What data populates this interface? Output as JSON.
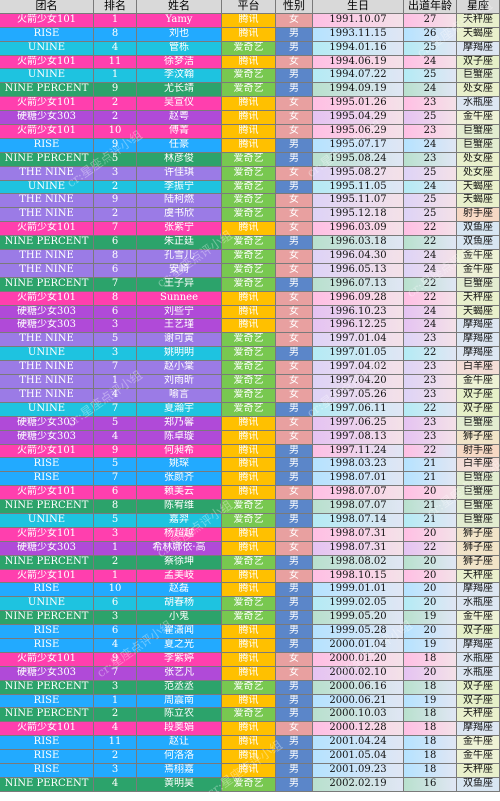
{
  "headers": [
    "团名",
    "排名",
    "姓名",
    "平台",
    "性别",
    "生日",
    "出道年龄",
    "星座"
  ],
  "colors": {
    "team": {
      "火箭少女101": "#ff3fae",
      "RISE": "#22aaff",
      "UNINE": "#1ec3e0",
      "NINE PERCENT": "#2ca36b",
      "硬糖少女303": "#b04ad8",
      "THE NINE": "#9b7be6"
    },
    "platform": {
      "腾讯": "#ffc000",
      "爱奇艺": "#78c850"
    },
    "gender": {
      "女": "#e8a0a0",
      "男": "#5b86c9"
    },
    "zodiac": {
      "天秤座": "#e9f0cc",
      "天蝎座": "#e9f0cc",
      "摩羯座": "#dde6f2",
      "双子座": "#e6f0c8",
      "巨蟹座": "#e2ecd0",
      "处女座": "#e9f0cc",
      "水瓶座": "#dde6f2",
      "金牛座": "#eef2d6",
      "狮子座": "#f1e4c8",
      "射手座": "#f6d8c4",
      "双鱼座": "#d8e6f2",
      "白羊座": "#f3ddd6"
    }
  },
  "watermark": "cr:星座点评小组",
  "rows": [
    [
      "火箭少女101",
      "1",
      "Yamy",
      "腾讯",
      "女",
      "1991.10.07",
      "27",
      "天秤座"
    ],
    [
      "RISE",
      "8",
      "刘也",
      "腾讯",
      "男",
      "1993.11.15",
      "26",
      "天蝎座"
    ],
    [
      "UNINE",
      "4",
      "管栎",
      "爱奇艺",
      "男",
      "1994.01.16",
      "25",
      "摩羯座"
    ],
    [
      "火箭少女101",
      "11",
      "徐梦洁",
      "腾讯",
      "女",
      "1994.06.19",
      "24",
      "双子座"
    ],
    [
      "UNINE",
      "1",
      "李汶翰",
      "爱奇艺",
      "男",
      "1994.07.22",
      "25",
      "巨蟹座"
    ],
    [
      "NINE PERCENT",
      "9",
      "尤长靖",
      "爱奇艺",
      "男",
      "1994.09.19",
      "24",
      "处女座"
    ],
    [
      "火箭少女101",
      "2",
      "吴宣仪",
      "腾讯",
      "女",
      "1995.01.26",
      "23",
      "水瓶座"
    ],
    [
      "硬糖少女303",
      "2",
      "赵粤",
      "腾讯",
      "女",
      "1995.04.29",
      "25",
      "金牛座"
    ],
    [
      "火箭少女101",
      "10",
      "傅菁",
      "腾讯",
      "女",
      "1995.06.29",
      "23",
      "巨蟹座"
    ],
    [
      "RISE",
      "9",
      "任豪",
      "腾讯",
      "男",
      "1995.07.17",
      "24",
      "巨蟹座"
    ],
    [
      "NINE PERCENT",
      "5",
      "林彦俊",
      "爱奇艺",
      "男",
      "1995.08.24",
      "23",
      "处女座"
    ],
    [
      "THE NINE",
      "3",
      "许佳琪",
      "爱奇艺",
      "女",
      "1995.08.27",
      "25",
      "处女座"
    ],
    [
      "UNINE",
      "2",
      "李振宁",
      "爱奇艺",
      "男",
      "1995.11.05",
      "24",
      "天蝎座"
    ],
    [
      "THE NINE",
      "9",
      "陆柯燃",
      "爱奇艺",
      "女",
      "1995.11.07",
      "25",
      "天蝎座"
    ],
    [
      "THE NINE",
      "2",
      "虞书欣",
      "爱奇艺",
      "女",
      "1995.12.18",
      "25",
      "射手座"
    ],
    [
      "火箭少女101",
      "7",
      "张紫宁",
      "腾讯",
      "女",
      "1996.03.09",
      "22",
      "双鱼座"
    ],
    [
      "NINE PERCENT",
      "6",
      "朱正廷",
      "爱奇艺",
      "男",
      "1996.03.18",
      "22",
      "双鱼座"
    ],
    [
      "THE NINE",
      "8",
      "孔雪儿",
      "爱奇艺",
      "女",
      "1996.04.30",
      "24",
      "金牛座"
    ],
    [
      "THE NINE",
      "6",
      "安崎",
      "爱奇艺",
      "女",
      "1996.05.13",
      "24",
      "金牛座"
    ],
    [
      "NINE PERCENT",
      "7",
      "王子异",
      "爱奇艺",
      "男",
      "1996.07.13",
      "22",
      "巨蟹座"
    ],
    [
      "火箭少女101",
      "8",
      "Sunnee",
      "腾讯",
      "女",
      "1996.09.28",
      "22",
      "天秤座"
    ],
    [
      "硬糖少女303",
      "6",
      "刘些宁",
      "腾讯",
      "女",
      "1996.10.23",
      "24",
      "天蝎座"
    ],
    [
      "硬糖少女303",
      "3",
      "王艺瑾",
      "腾讯",
      "女",
      "1996.12.25",
      "24",
      "摩羯座"
    ],
    [
      "THE NINE",
      "5",
      "谢可寅",
      "爱奇艺",
      "女",
      "1997.01.04",
      "23",
      "摩羯座"
    ],
    [
      "UNINE",
      "3",
      "姚明明",
      "爱奇艺",
      "男",
      "1997.01.05",
      "22",
      "摩羯座"
    ],
    [
      "THE NINE",
      "7",
      "赵小棠",
      "爱奇艺",
      "女",
      "1997.04.02",
      "23",
      "白羊座"
    ],
    [
      "THE NINE",
      "1",
      "刘雨昕",
      "爱奇艺",
      "女",
      "1997.04.20",
      "23",
      "金牛座"
    ],
    [
      "THE NINE",
      "4",
      "喻言",
      "爱奇艺",
      "女",
      "1997.05.26",
      "23",
      "双子座"
    ],
    [
      "UNINE",
      "7",
      "夏瀚宇",
      "爱奇艺",
      "男",
      "1997.06.11",
      "22",
      "双子座"
    ],
    [
      "硬糖少女303",
      "5",
      "郑乃馨",
      "腾讯",
      "女",
      "1997.06.25",
      "23",
      "巨蟹座"
    ],
    [
      "硬糖少女303",
      "4",
      "陈卓璇",
      "腾讯",
      "女",
      "1997.08.13",
      "23",
      "狮子座"
    ],
    [
      "火箭少女101",
      "9",
      "何昶希",
      "腾讯",
      "男",
      "1997.11.24",
      "22",
      "射手座"
    ],
    [
      "RISE",
      "5",
      "姚琛",
      "腾讯",
      "男",
      "1998.03.23",
      "21",
      "白羊座"
    ],
    [
      "RISE",
      "7",
      "张颜齐",
      "腾讯",
      "男",
      "1998.07.01",
      "21",
      "巨蟹座"
    ],
    [
      "火箭少女101",
      "6",
      "赖美云",
      "腾讯",
      "女",
      "1998.07.07",
      "20",
      "巨蟹座"
    ],
    [
      "NINE PERCENT",
      "8",
      "陈宥维",
      "爱奇艺",
      "男",
      "1998.07.07",
      "21",
      "巨蟹座"
    ],
    [
      "UNINE",
      "5",
      "嘉羿",
      "爱奇艺",
      "男",
      "1998.07.14",
      "21",
      "巨蟹座"
    ],
    [
      "火箭少女101",
      "3",
      "杨超越",
      "腾讯",
      "女",
      "1998.07.31",
      "20",
      "狮子座"
    ],
    [
      "硬糖少女303",
      "1",
      "希林娜依·高",
      "腾讯",
      "女",
      "1998.07.31",
      "22",
      "狮子座"
    ],
    [
      "NINE PERCENT",
      "2",
      "蔡徐坤",
      "爱奇艺",
      "男",
      "1998.08.02",
      "20",
      "狮子座"
    ],
    [
      "火箭少女101",
      "1",
      "孟美岐",
      "腾讯",
      "女",
      "1998.10.15",
      "20",
      "天秤座"
    ],
    [
      "RISE",
      "10",
      "赵磊",
      "腾讯",
      "男",
      "1999.01.01",
      "20",
      "摩羯座"
    ],
    [
      "UNINE",
      "6",
      "胡春杨",
      "爱奇艺",
      "男",
      "1999.02.05",
      "20",
      "水瓶座"
    ],
    [
      "NINE PERCENT",
      "3",
      "小鬼",
      "爱奇艺",
      "男",
      "1999.05.20",
      "19",
      "金牛座"
    ],
    [
      "RISE",
      "6",
      "翟潇闻",
      "腾讯",
      "男",
      "1999.05.28",
      "20",
      "双子座"
    ],
    [
      "RISE",
      "4",
      "夏之光",
      "腾讯",
      "男",
      "2000.01.04",
      "19",
      "摩羯座"
    ],
    [
      "火箭少女101",
      "9",
      "李紫婷",
      "腾讯",
      "女",
      "2000.01.20",
      "18",
      "水瓶座"
    ],
    [
      "硬糖少女303",
      "7",
      "张艺凡",
      "腾讯",
      "女",
      "2000.02.10",
      "20",
      "水瓶座"
    ],
    [
      "NINE PERCENT",
      "3",
      "范丞丞",
      "爱奇艺",
      "男",
      "2000.06.16",
      "18",
      "双子座"
    ],
    [
      "RISE",
      "1",
      "周震南",
      "腾讯",
      "男",
      "2000.06.21",
      "19",
      "双子座"
    ],
    [
      "NINE PERCENT",
      "2",
      "陈立农",
      "爱奇艺",
      "男",
      "2000.10.03",
      "18",
      "天秤座"
    ],
    [
      "火箭少女101",
      "4",
      "段奥娟",
      "腾讯",
      "女",
      "2000.12.28",
      "18",
      "摩羯座"
    ],
    [
      "RISE",
      "11",
      "赵让",
      "腾讯",
      "男",
      "2001.04.24",
      "18",
      "金牛座"
    ],
    [
      "RISE",
      "2",
      "何洛洛",
      "腾讯",
      "男",
      "2001.05.04",
      "18",
      "金牛座"
    ],
    [
      "RISE",
      "3",
      "焉栩嘉",
      "腾讯",
      "男",
      "2001.09.23",
      "18",
      "天秤座"
    ],
    [
      "NINE PERCENT",
      "4",
      "黄明昊",
      "爱奇艺",
      "男",
      "2002.02.19",
      "16",
      "双鱼座"
    ]
  ]
}
